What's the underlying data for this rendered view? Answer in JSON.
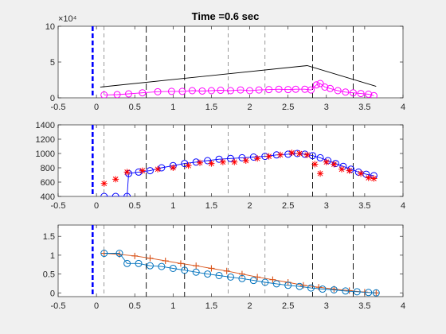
{
  "figure": {
    "title": "Time =0.6 sec",
    "background": "#f0f0f0",
    "axes_background": "#ffffff"
  },
  "chart_data": [
    {
      "type": "line",
      "xlim": [
        -0.5,
        4
      ],
      "ylim": [
        0,
        10
      ],
      "exponent_label": "×10⁴",
      "xticks": [
        "-0.5",
        "0",
        "0.5",
        "1",
        "1.5",
        "2",
        "2.5",
        "3",
        "3.5",
        "4"
      ],
      "yticks": [
        "0",
        "5",
        "10"
      ],
      "grid": false,
      "legend": "none",
      "vlines": {
        "blue_thick": -0.05,
        "dashed_light": [
          0.1,
          1.72,
          2.2
        ],
        "dashed_dark": [
          0.65,
          1.15,
          2.82,
          3.35
        ]
      },
      "series": [
        {
          "style": "line",
          "color": "#000000",
          "values": [
            [
              0.05,
              1.5
            ],
            [
              2.75,
              4.5
            ],
            [
              3.65,
              1.6
            ]
          ]
        },
        {
          "style": "line-circle",
          "color": "#ff00ff",
          "values": [
            [
              0.1,
              0.4
            ],
            [
              0.27,
              0.45
            ],
            [
              0.42,
              0.55
            ],
            [
              0.6,
              0.7
            ],
            [
              0.8,
              0.85
            ],
            [
              0.98,
              0.9
            ],
            [
              1.12,
              0.9
            ],
            [
              1.25,
              1.0
            ],
            [
              1.38,
              0.95
            ],
            [
              1.5,
              1.0
            ],
            [
              1.62,
              1.05
            ],
            [
              1.75,
              1.0
            ],
            [
              1.88,
              1.1
            ],
            [
              2.0,
              1.0
            ],
            [
              2.12,
              1.1
            ],
            [
              2.25,
              1.15
            ],
            [
              2.38,
              1.2
            ],
            [
              2.5,
              1.15
            ],
            [
              2.6,
              1.2
            ],
            [
              2.72,
              1.2
            ],
            [
              2.8,
              1.1
            ],
            [
              2.87,
              1.8
            ],
            [
              2.92,
              2.0
            ],
            [
              2.98,
              1.5
            ],
            [
              3.05,
              1.3
            ],
            [
              3.15,
              1.0
            ],
            [
              3.25,
              0.8
            ],
            [
              3.35,
              0.7
            ],
            [
              3.45,
              0.6
            ],
            [
              3.55,
              0.5
            ],
            [
              3.62,
              0.3
            ]
          ]
        }
      ]
    },
    {
      "type": "line",
      "xlim": [
        -0.5,
        4
      ],
      "ylim": [
        400,
        1400
      ],
      "xticks": [
        "-0.5",
        "0",
        "0.5",
        "1",
        "1.5",
        "2",
        "2.5",
        "3",
        "3.5",
        "4"
      ],
      "yticks": [
        "400",
        "600",
        "800",
        "1000",
        "1200",
        "1400"
      ],
      "grid": false,
      "legend": "none",
      "vlines": {
        "blue_thick": -0.05,
        "dashed_light": [
          0.1,
          1.72,
          2.2
        ],
        "dashed_dark": [
          0.65,
          1.15,
          2.82,
          3.35
        ]
      },
      "series": [
        {
          "style": "line-circle",
          "color": "#0000ff",
          "values": [
            [
              0.1,
              400
            ],
            [
              0.25,
              400
            ],
            [
              0.4,
              400
            ],
            [
              0.42,
              720
            ],
            [
              0.55,
              740
            ],
            [
              0.7,
              760
            ],
            [
              0.85,
              800
            ],
            [
              1.0,
              830
            ],
            [
              1.15,
              860
            ],
            [
              1.3,
              880
            ],
            [
              1.45,
              900
            ],
            [
              1.6,
              920
            ],
            [
              1.75,
              930
            ],
            [
              1.9,
              940
            ],
            [
              2.05,
              950
            ],
            [
              2.2,
              960
            ],
            [
              2.35,
              980
            ],
            [
              2.5,
              990
            ],
            [
              2.62,
              1000
            ],
            [
              2.72,
              990
            ],
            [
              2.82,
              970
            ],
            [
              2.92,
              940
            ],
            [
              3.02,
              900
            ],
            [
              3.12,
              860
            ],
            [
              3.22,
              820
            ],
            [
              3.32,
              780
            ],
            [
              3.42,
              740
            ],
            [
              3.52,
              710
            ],
            [
              3.62,
              690
            ]
          ]
        },
        {
          "style": "star",
          "color": "#ff0000",
          "values": [
            [
              0.1,
              580
            ],
            [
              0.25,
              640
            ],
            [
              0.4,
              740
            ],
            [
              0.6,
              760
            ],
            [
              0.8,
              780
            ],
            [
              1.0,
              800
            ],
            [
              1.2,
              830
            ],
            [
              1.35,
              870
            ],
            [
              1.5,
              860
            ],
            [
              1.65,
              880
            ],
            [
              1.8,
              880
            ],
            [
              1.95,
              900
            ],
            [
              2.1,
              930
            ],
            [
              2.25,
              960
            ],
            [
              2.4,
              980
            ],
            [
              2.55,
              1010
            ],
            [
              2.65,
              1000
            ],
            [
              2.75,
              980
            ],
            [
              2.85,
              850
            ],
            [
              2.92,
              720
            ],
            [
              3.0,
              880
            ],
            [
              3.1,
              850
            ],
            [
              3.2,
              780
            ],
            [
              3.3,
              760
            ],
            [
              3.45,
              720
            ],
            [
              3.55,
              660
            ],
            [
              3.62,
              650
            ]
          ]
        }
      ]
    },
    {
      "type": "line",
      "xlim": [
        -0.5,
        4
      ],
      "ylim": [
        -0.1,
        1.8
      ],
      "xticks": [
        "-0.5",
        "0",
        "0.5",
        "1",
        "1.5",
        "2",
        "2.5",
        "3",
        "3.5",
        "4"
      ],
      "yticks": [
        "0",
        "0.5",
        "1",
        "1.5"
      ],
      "grid": false,
      "legend": "none",
      "vlines": {
        "blue_thick": -0.05,
        "dashed_light": [
          0.1,
          1.72,
          2.2
        ],
        "dashed_dark": [
          0.65,
          1.15,
          2.82,
          3.35
        ]
      },
      "series": [
        {
          "style": "line-plus",
          "color": "#d95319",
          "values": [
            [
              0.1,
              1.05
            ],
            [
              0.3,
              1.02
            ],
            [
              0.5,
              0.98
            ],
            [
              0.7,
              0.92
            ],
            [
              0.9,
              0.85
            ],
            [
              1.1,
              0.78
            ],
            [
              1.3,
              0.72
            ],
            [
              1.5,
              0.65
            ],
            [
              1.7,
              0.58
            ],
            [
              1.9,
              0.5
            ],
            [
              2.1,
              0.42
            ],
            [
              2.3,
              0.35
            ],
            [
              2.5,
              0.28
            ],
            [
              2.7,
              0.2
            ],
            [
              2.9,
              0.15
            ],
            [
              3.1,
              0.1
            ],
            [
              3.3,
              0.06
            ],
            [
              3.5,
              0.02
            ],
            [
              3.65,
              0.0
            ]
          ]
        },
        {
          "style": "line-circle",
          "color": "#0072bd",
          "values": [
            [
              0.1,
              1.05
            ],
            [
              0.3,
              1.05
            ],
            [
              0.4,
              0.78
            ],
            [
              0.55,
              0.78
            ],
            [
              0.7,
              0.72
            ],
            [
              0.85,
              0.7
            ],
            [
              1.0,
              0.65
            ],
            [
              1.15,
              0.6
            ],
            [
              1.3,
              0.55
            ],
            [
              1.45,
              0.5
            ],
            [
              1.6,
              0.46
            ],
            [
              1.75,
              0.42
            ],
            [
              1.9,
              0.38
            ],
            [
              2.05,
              0.33
            ],
            [
              2.2,
              0.28
            ],
            [
              2.35,
              0.24
            ],
            [
              2.5,
              0.2
            ],
            [
              2.65,
              0.17
            ],
            [
              2.8,
              0.13
            ],
            [
              2.95,
              0.1
            ],
            [
              3.1,
              0.08
            ],
            [
              3.25,
              0.05
            ],
            [
              3.4,
              0.03
            ],
            [
              3.55,
              0.01
            ],
            [
              3.65,
              0.0
            ]
          ]
        }
      ]
    }
  ]
}
